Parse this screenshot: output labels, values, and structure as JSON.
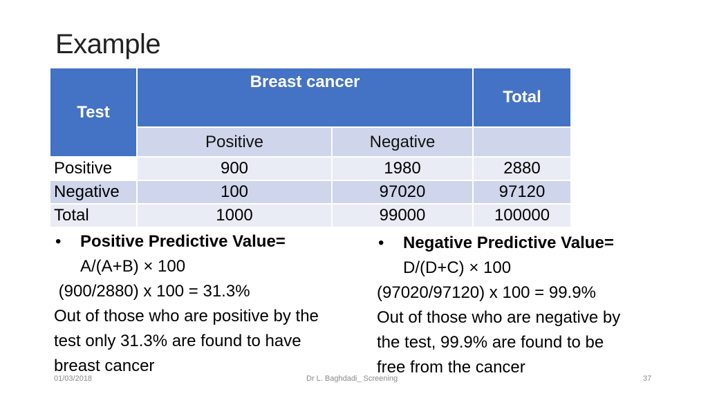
{
  "title": "Example",
  "table": {
    "header_test": "Test",
    "header_breast_cancer": "Breast cancer",
    "header_total": "Total",
    "sub_positive": "Positive",
    "sub_negative": "Negative",
    "sub_total": "",
    "rows": [
      {
        "label": "Positive",
        "pos": "900",
        "neg": "1980",
        "total": "2880"
      },
      {
        "label": "Negative",
        "pos": "100",
        "neg": "97020",
        "total": "97120"
      },
      {
        "label": "Total",
        "pos": "1000",
        "neg": "99000",
        "total": "100000"
      }
    ]
  },
  "left": {
    "bullet": "•",
    "heading": "Positive Predictive Value=",
    "formula": "A/(A+B) × 100",
    "calc": " (900/2880) x 100 = 31.3%",
    "text1": "Out of those who are positive by the",
    "text2": "test only 31.3% are found to have",
    "text3": "breast cancer"
  },
  "right": {
    "bullet": "•",
    "heading": "Negative Predictive Value=",
    "formula": "D/(D+C) × 100",
    "calc": "(97020/97120) x 100 = 99.9%",
    "text1": "Out of those who are negative by",
    "text2": "the test, 99.9% are found to be",
    "text3": "free from the cancer"
  },
  "footer": {
    "date": "01/03/2018",
    "center": "Dr L. Baghdadi_ Screening",
    "page": "37"
  },
  "colors": {
    "header": "#4472c4",
    "band_dark": "#cfd5ea",
    "band_light": "#e9ebf5"
  }
}
